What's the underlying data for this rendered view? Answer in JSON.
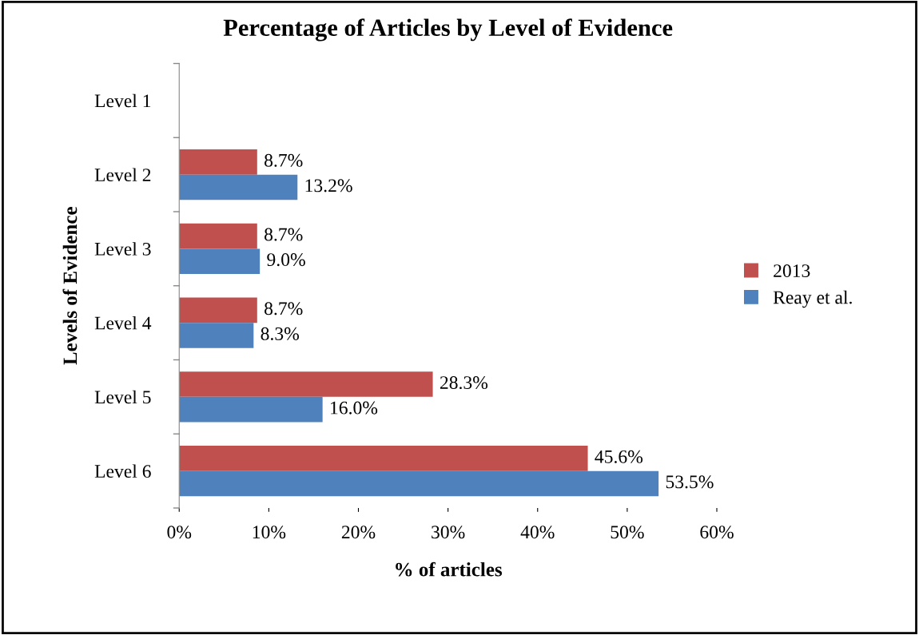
{
  "chart_data": {
    "type": "bar",
    "orientation": "horizontal",
    "title": "Percentage of Articles by Level of Evidence",
    "xlabel": "% of articles",
    "ylabel": "Levels of Evidence",
    "categories": [
      "Level 1",
      "Level 2",
      "Level 3",
      "Level 4",
      "Level 5",
      "Level 6"
    ],
    "series": [
      {
        "name": "2013",
        "color": "#c0504d",
        "values": [
          null,
          8.7,
          8.7,
          8.7,
          28.3,
          45.6
        ],
        "value_labels": [
          null,
          "8.7%",
          "8.7%",
          "8.7%",
          "28.3%",
          "45.6%"
        ]
      },
      {
        "name": "Reay et al.",
        "color": "#4f81bd",
        "values": [
          null,
          13.2,
          9.0,
          8.3,
          16.0,
          53.5
        ],
        "value_labels": [
          null,
          "13.2%",
          "9.0%",
          "8.3%",
          "16.0%",
          "53.5%"
        ]
      }
    ],
    "xlim": [
      0,
      60
    ],
    "xticks": [
      {
        "value": 0,
        "label": "0%"
      },
      {
        "value": 10,
        "label": "10%"
      },
      {
        "value": 20,
        "label": "20%"
      },
      {
        "value": 30,
        "label": "30%"
      },
      {
        "value": 40,
        "label": "40%"
      },
      {
        "value": 50,
        "label": "50%"
      },
      {
        "value": 60,
        "label": "60%"
      }
    ],
    "grid": false,
    "legend": "right"
  }
}
